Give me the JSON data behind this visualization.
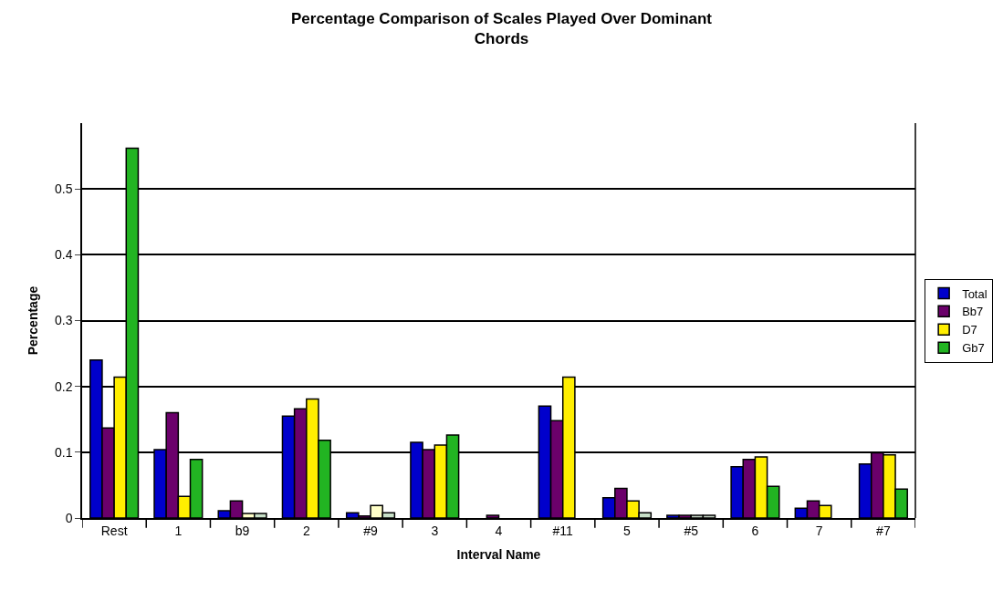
{
  "chart_data": {
    "type": "bar",
    "title": "Percentage Comparison of Scales Played Over Dominant Chords",
    "xlabel": "Interval Name",
    "ylabel": "Percentage",
    "categories": [
      "Rest",
      "1",
      "b9",
      "2",
      "#9",
      "3",
      "4",
      "#11",
      "5",
      "#5",
      "6",
      "7",
      "#7"
    ],
    "series": [
      {
        "name": "Total",
        "color": "#0000cc",
        "values": [
          0.24,
          0.104,
          0.011,
          0.155,
          0.008,
          0.115,
          null,
          0.17,
          0.031,
          0.004,
          0.078,
          0.015,
          0.082
        ]
      },
      {
        "name": "Bb7",
        "color": "#6b006b",
        "values": [
          0.137,
          0.16,
          0.026,
          0.166,
          0.003,
          0.104,
          0.004,
          0.148,
          0.045,
          0.004,
          0.089,
          0.026,
          0.099
        ]
      },
      {
        "name": "D7",
        "color": "#ffee00",
        "colors": [
          "#ffee00",
          "#ffee00",
          "#ffffc8",
          "#ffee00",
          "#ffffc8",
          "#ffee00",
          "#ffee00",
          "#ffee00",
          "#ffee00",
          "#c8d8c8",
          "#ffee00",
          "#ffee00",
          "#ffee00"
        ],
        "values": [
          0.214,
          0.033,
          0.007,
          0.181,
          0.019,
          0.111,
          null,
          0.214,
          0.026,
          0.004,
          0.093,
          0.019,
          0.096
        ]
      },
      {
        "name": "Gb7",
        "color": "#22b422",
        "colors": [
          "#22b422",
          "#22b422",
          "#c8e0c8",
          "#22b422",
          "#c8e0c8",
          "#22b422",
          "#22b422",
          "#22b422",
          "#c8e0c8",
          "#c8d8c8",
          "#22b422",
          "#22b422",
          "#22b422"
        ],
        "values": [
          0.562,
          0.089,
          0.007,
          0.118,
          0.008,
          0.126,
          null,
          null,
          0.008,
          0.004,
          0.048,
          null,
          0.044
        ]
      }
    ],
    "ylim": [
      0,
      0.6
    ],
    "yticks": [
      0,
      0.1,
      0.2,
      0.3,
      0.4,
      0.5
    ],
    "grid": "y",
    "legend": "right"
  }
}
